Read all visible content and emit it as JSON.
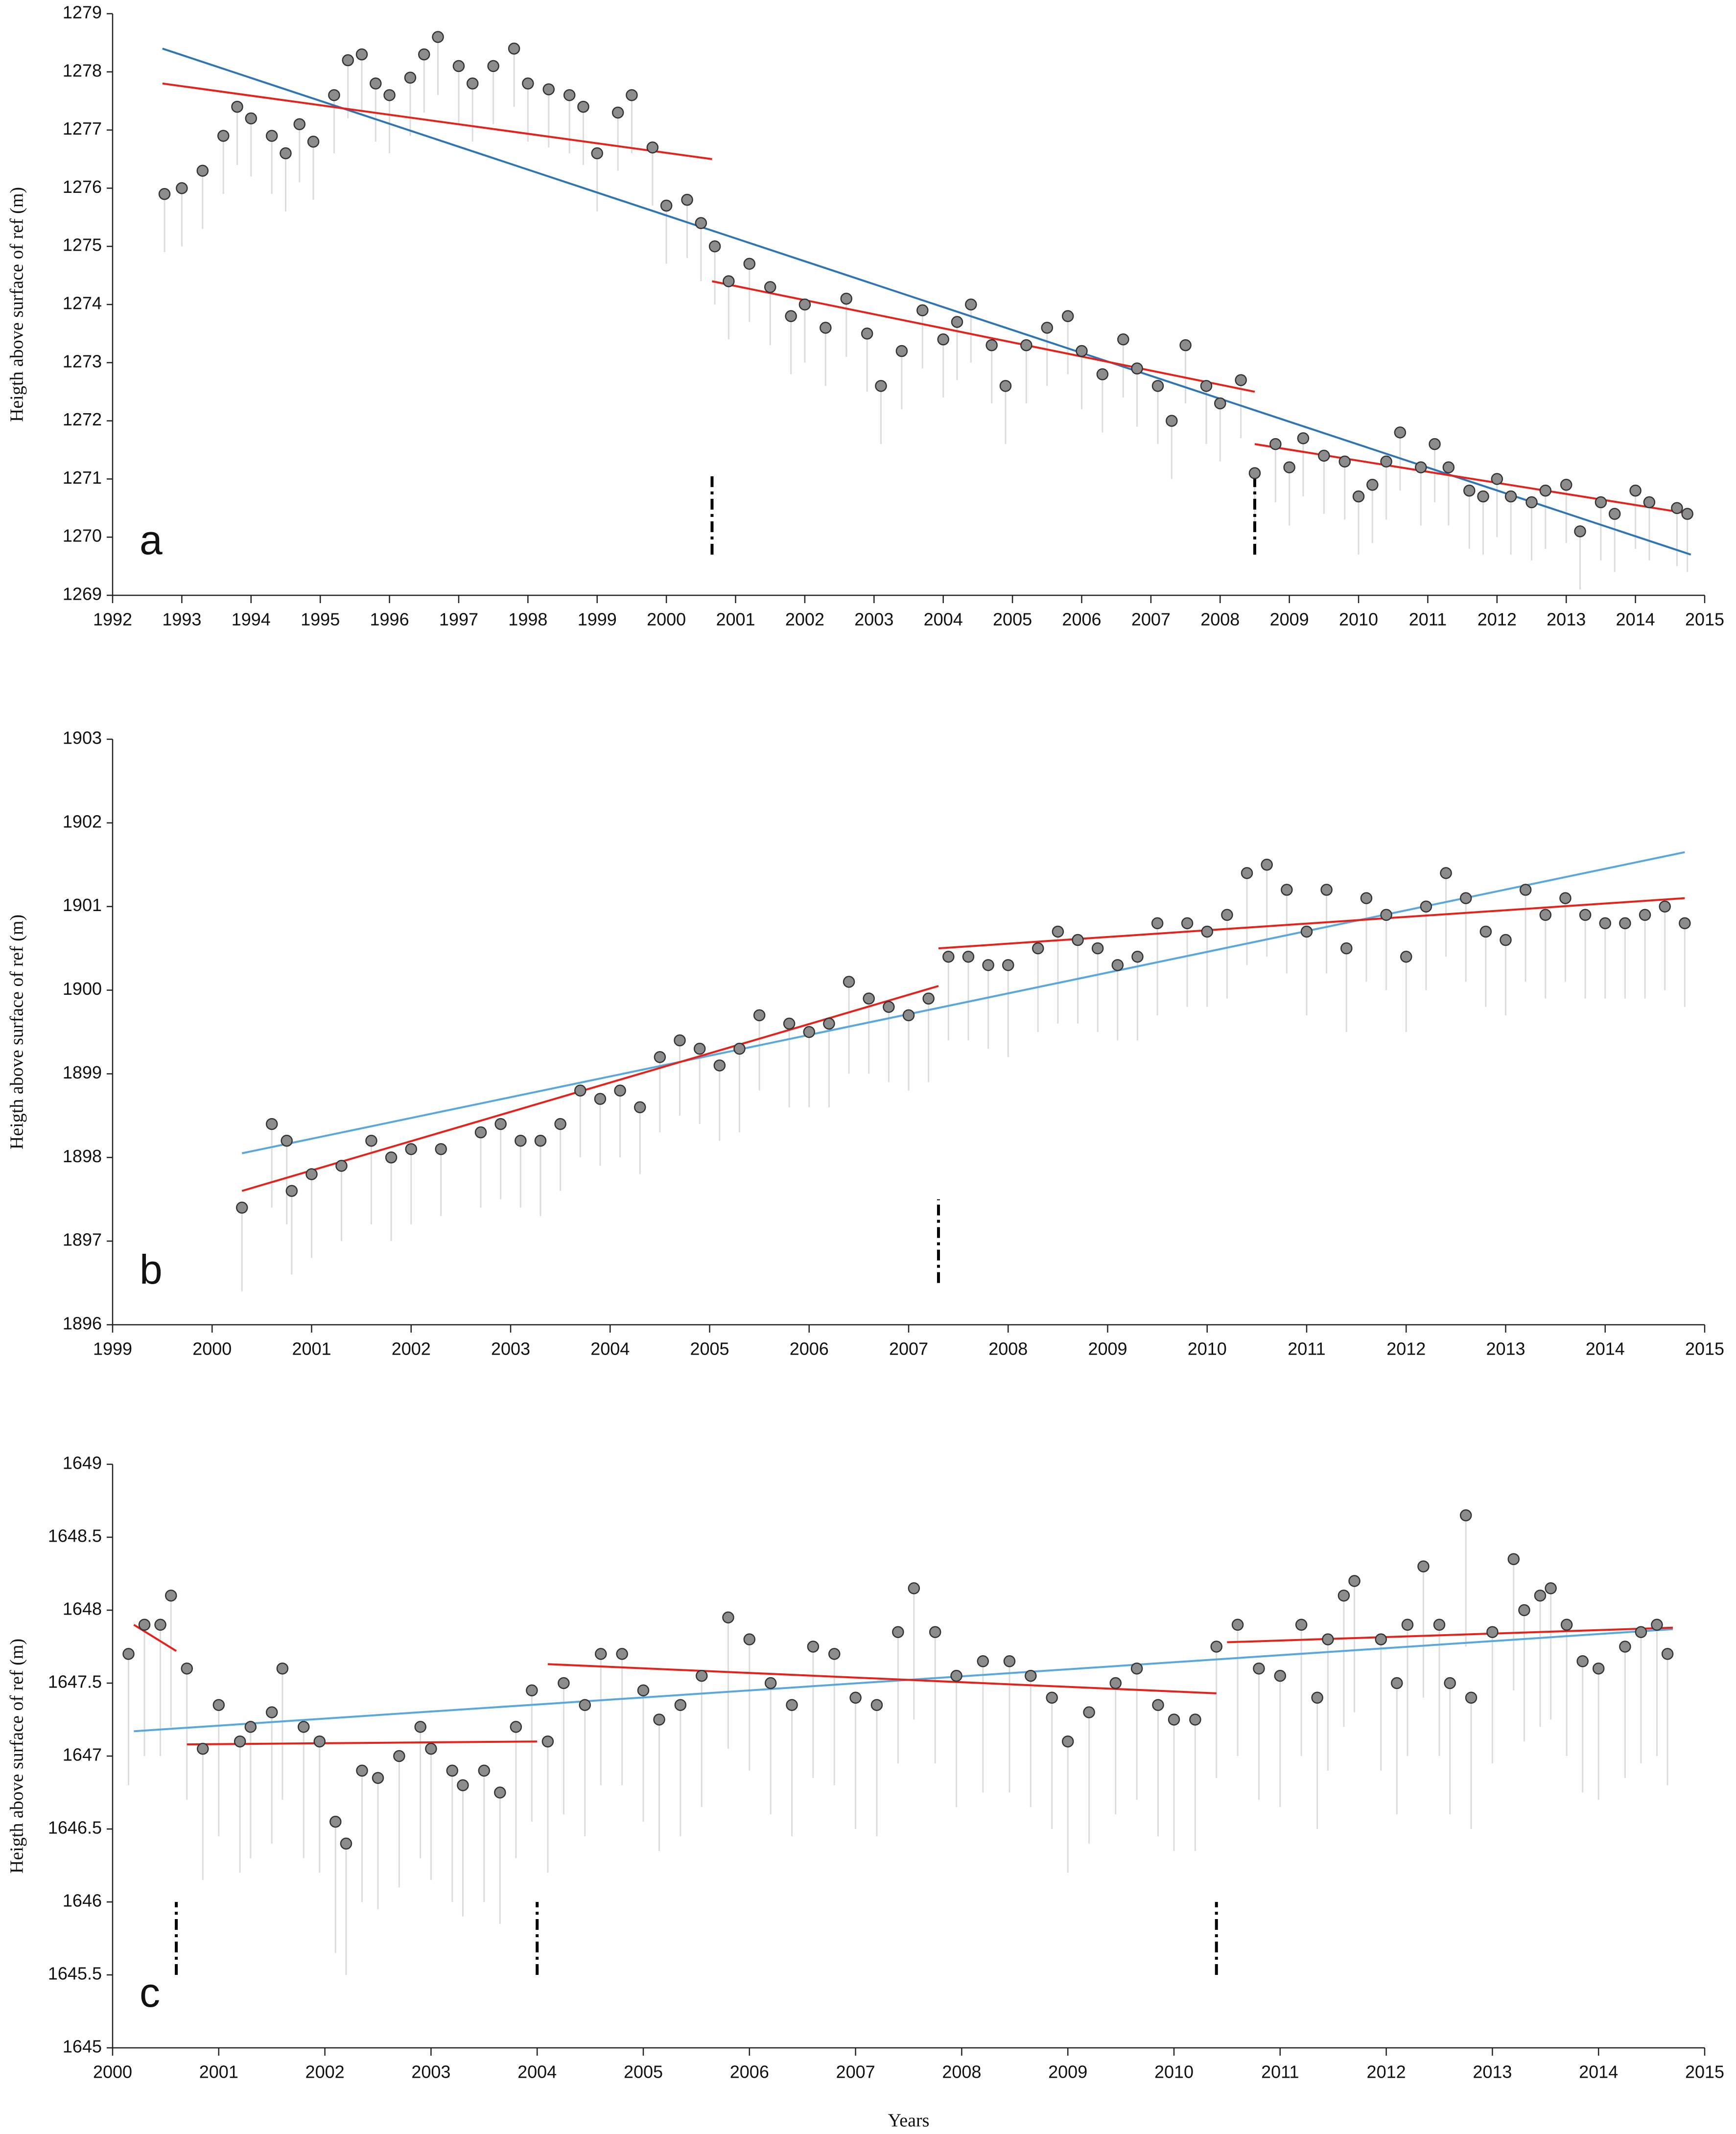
{
  "chart_data": [
    {
      "type": "scatter",
      "panel_label": "a",
      "ylabel": "Heigth above surface of ref  (m)",
      "xlim": [
        1992,
        2015
      ],
      "xticks": [
        1992,
        1993,
        1994,
        1995,
        1996,
        1997,
        1998,
        1999,
        2000,
        2001,
        2002,
        2003,
        2004,
        2005,
        2006,
        2007,
        2008,
        2009,
        2010,
        2011,
        2012,
        2013,
        2014,
        2015
      ],
      "ylim": [
        1269,
        1279
      ],
      "yticks": [
        1269,
        1270,
        1271,
        1272,
        1273,
        1274,
        1275,
        1276,
        1277,
        1278,
        1279
      ],
      "point_color": "#8c8c8c",
      "range_color": "#dcdcdc",
      "x": [
        1992.75,
        1993.0,
        1993.3,
        1993.6,
        1993.8,
        1994.0,
        1994.3,
        1994.5,
        1994.7,
        1994.9,
        1995.2,
        1995.4,
        1995.6,
        1995.8,
        1996.0,
        1996.3,
        1996.5,
        1996.7,
        1997.0,
        1997.2,
        1997.5,
        1997.8,
        1998.0,
        1998.3,
        1998.6,
        1998.8,
        1999.0,
        1999.3,
        1999.5,
        1999.8,
        2000.0,
        2000.3,
        2000.5,
        2000.7,
        2000.9,
        2001.2,
        2001.5,
        2001.8,
        2002.0,
        2002.3,
        2002.6,
        2002.9,
        2003.1,
        2003.4,
        2003.7,
        2004.0,
        2004.2,
        2004.4,
        2004.7,
        2004.9,
        2005.2,
        2005.5,
        2005.8,
        2006.0,
        2006.3,
        2006.6,
        2006.8,
        2007.1,
        2007.3,
        2007.5,
        2007.8,
        2008.0,
        2008.3,
        2008.5,
        2008.8,
        2009.0,
        2009.2,
        2009.5,
        2009.8,
        2010.0,
        2010.2,
        2010.4,
        2010.6,
        2010.9,
        2011.1,
        2011.3,
        2011.6,
        2011.8,
        2012.0,
        2012.2,
        2012.5,
        2012.7,
        2013.0,
        2013.2,
        2013.5,
        2013.7,
        2014.0,
        2014.2,
        2014.6,
        2014.75
      ],
      "values": [
        1275.9,
        1276.0,
        1276.3,
        1276.9,
        1277.4,
        1277.2,
        1276.9,
        1276.6,
        1277.1,
        1276.8,
        1277.6,
        1278.2,
        1278.3,
        1277.8,
        1277.6,
        1277.9,
        1278.3,
        1278.6,
        1278.1,
        1277.8,
        1278.1,
        1278.4,
        1277.8,
        1277.7,
        1277.6,
        1277.4,
        1276.6,
        1277.3,
        1277.6,
        1276.7,
        1275.7,
        1275.8,
        1275.4,
        1275.0,
        1274.4,
        1274.7,
        1274.3,
        1273.8,
        1274.0,
        1273.6,
        1274.1,
        1273.5,
        1272.6,
        1273.2,
        1273.9,
        1273.4,
        1273.7,
        1274.0,
        1273.3,
        1272.6,
        1273.3,
        1273.6,
        1273.8,
        1273.2,
        1272.8,
        1273.4,
        1272.9,
        1272.6,
        1272.0,
        1273.3,
        1272.6,
        1272.3,
        1272.7,
        1271.1,
        1271.6,
        1271.2,
        1271.7,
        1271.4,
        1271.3,
        1270.7,
        1270.9,
        1271.3,
        1271.8,
        1271.2,
        1271.6,
        1271.2,
        1270.8,
        1270.7,
        1271.0,
        1270.7,
        1270.6,
        1270.8,
        1270.9,
        1270.1,
        1270.6,
        1270.4,
        1270.8,
        1270.6,
        1270.5,
        1270.4
      ],
      "lows": [
        1274.9,
        1275.0,
        1275.3,
        1275.9,
        1276.4,
        1276.2,
        1275.9,
        1275.6,
        1276.1,
        1275.8,
        1276.6,
        1277.2,
        1277.3,
        1276.8,
        1276.6,
        1276.9,
        1277.3,
        1277.6,
        1277.1,
        1276.8,
        1277.1,
        1277.4,
        1276.8,
        1276.7,
        1276.6,
        1276.4,
        1275.6,
        1276.3,
        1276.6,
        1275.7,
        1274.7,
        1274.8,
        1274.4,
        1274.0,
        1273.4,
        1273.7,
        1273.3,
        1272.8,
        1273.0,
        1272.6,
        1273.1,
        1272.5,
        1271.6,
        1272.2,
        1272.9,
        1272.4,
        1272.7,
        1273.0,
        1272.3,
        1271.6,
        1272.3,
        1272.6,
        1272.8,
        1272.2,
        1271.8,
        1272.4,
        1271.9,
        1271.6,
        1271.0,
        1272.3,
        1271.6,
        1271.3,
        1271.7,
        1270.1,
        1270.6,
        1270.2,
        1270.7,
        1270.4,
        1270.3,
        1269.7,
        1269.9,
        1270.3,
        1270.8,
        1270.2,
        1270.6,
        1270.2,
        1269.8,
        1269.7,
        1270.0,
        1269.7,
        1269.6,
        1269.8,
        1269.9,
        1269.1,
        1269.6,
        1269.4,
        1269.8,
        1269.6,
        1269.5,
        1269.4
      ],
      "trend_lines": [
        {
          "color": "#2e75b6",
          "x": [
            1992.72,
            2014.8
          ],
          "y": [
            1278.4,
            1269.7
          ]
        },
        {
          "color": "#e8201a",
          "x": [
            1992.72,
            2000.66
          ],
          "y": [
            1277.8,
            1276.5
          ]
        },
        {
          "color": "#e8201a",
          "x": [
            2000.66,
            2008.5
          ],
          "y": [
            1274.4,
            1272.5
          ]
        },
        {
          "color": "#e8201a",
          "x": [
            2008.5,
            2014.8
          ],
          "y": [
            1271.6,
            1270.4
          ]
        }
      ],
      "breaks": [
        {
          "x": 2000.66,
          "y": [
            1269.7,
            1271.05
          ]
        },
        {
          "x": 2008.5,
          "y": [
            1269.7,
            1271.0
          ]
        }
      ]
    },
    {
      "type": "scatter",
      "panel_label": "b",
      "ylabel": "Heigth above surface of ref  (m)",
      "xlim": [
        1999,
        2015
      ],
      "xticks": [
        1999,
        2000,
        2001,
        2002,
        2003,
        2004,
        2005,
        2006,
        2007,
        2008,
        2009,
        2010,
        2011,
        2012,
        2013,
        2014,
        2015
      ],
      "ylim": [
        1896,
        1903
      ],
      "yticks": [
        1896,
        1897,
        1898,
        1899,
        1900,
        1901,
        1902,
        1903
      ],
      "point_color": "#8c8c8c",
      "range_color": "#dcdcdc",
      "x": [
        2000.3,
        2000.6,
        2000.75,
        2000.8,
        2001.0,
        2001.3,
        2001.6,
        2001.8,
        2002.0,
        2002.3,
        2002.7,
        2002.9,
        2003.1,
        2003.3,
        2003.5,
        2003.7,
        2003.9,
        2004.1,
        2004.3,
        2004.5,
        2004.7,
        2004.9,
        2005.1,
        2005.3,
        2005.5,
        2005.8,
        2006.0,
        2006.2,
        2006.4,
        2006.6,
        2006.8,
        2007.0,
        2007.2,
        2007.4,
        2007.6,
        2007.8,
        2008.0,
        2008.3,
        2008.5,
        2008.7,
        2008.9,
        2009.1,
        2009.3,
        2009.5,
        2009.8,
        2010.0,
        2010.2,
        2010.4,
        2010.6,
        2010.8,
        2011.0,
        2011.2,
        2011.4,
        2011.6,
        2011.8,
        2012.0,
        2012.2,
        2012.4,
        2012.6,
        2012.8,
        2013.0,
        2013.2,
        2013.4,
        2013.6,
        2013.8,
        2014.0,
        2014.2,
        2014.4,
        2014.6,
        2014.8
      ],
      "values": [
        1897.4,
        1898.4,
        1898.2,
        1897.6,
        1897.8,
        1897.9,
        1898.2,
        1898.0,
        1898.1,
        1898.1,
        1898.3,
        1898.4,
        1898.2,
        1898.2,
        1898.4,
        1898.8,
        1898.7,
        1898.8,
        1898.6,
        1899.2,
        1899.4,
        1899.3,
        1899.1,
        1899.3,
        1899.7,
        1899.6,
        1899.5,
        1899.6,
        1900.1,
        1899.9,
        1899.8,
        1899.7,
        1899.9,
        1900.4,
        1900.4,
        1900.3,
        1900.3,
        1900.5,
        1900.7,
        1900.6,
        1900.5,
        1900.3,
        1900.4,
        1900.8,
        1900.8,
        1900.7,
        1900.9,
        1901.4,
        1901.5,
        1901.2,
        1900.7,
        1901.2,
        1900.5,
        1901.1,
        1900.9,
        1900.4,
        1901.0,
        1901.4,
        1901.1,
        1900.7,
        1900.6,
        1901.2,
        1900.9,
        1901.1,
        1900.9,
        1900.8,
        1900.8,
        1900.9,
        1901.0,
        1900.8
      ],
      "lows": [
        1896.4,
        1897.4,
        1897.2,
        1896.6,
        1896.8,
        1897.0,
        1897.2,
        1897.0,
        1897.2,
        1897.3,
        1897.4,
        1897.5,
        1897.4,
        1897.3,
        1897.6,
        1898.0,
        1897.9,
        1898.0,
        1897.8,
        1898.3,
        1898.5,
        1898.4,
        1898.2,
        1898.3,
        1898.8,
        1898.6,
        1898.6,
        1898.6,
        1899.0,
        1899.0,
        1898.9,
        1898.8,
        1898.9,
        1899.4,
        1899.4,
        1899.3,
        1899.2,
        1899.5,
        1899.6,
        1899.6,
        1899.5,
        1899.4,
        1899.4,
        1899.7,
        1899.8,
        1899.8,
        1899.9,
        1900.3,
        1900.4,
        1900.2,
        1899.7,
        1900.2,
        1899.5,
        1900.1,
        1900.0,
        1899.5,
        1900.0,
        1900.4,
        1900.1,
        1899.8,
        1899.7,
        1900.1,
        1899.9,
        1900.1,
        1899.9,
        1899.9,
        1899.9,
        1899.9,
        1900.0,
        1899.8
      ],
      "trend_lines": [
        {
          "color": "#5aa7de",
          "x": [
            2000.3,
            2014.8
          ],
          "y": [
            1898.05,
            1901.65
          ]
        },
        {
          "color": "#e8201a",
          "x": [
            2000.3,
            2007.3
          ],
          "y": [
            1897.6,
            1900.05
          ]
        },
        {
          "color": "#e8201a",
          "x": [
            2007.3,
            2014.8
          ],
          "y": [
            1900.5,
            1901.1
          ]
        }
      ],
      "breaks": [
        {
          "x": 2007.3,
          "y": [
            1896.5,
            1897.5
          ]
        }
      ]
    },
    {
      "type": "scatter",
      "panel_label": "c",
      "ylabel": "Heigth above surface of ref  (m)",
      "xlabel": "Years",
      "xlim": [
        2000,
        2015
      ],
      "xticks": [
        2000,
        2001,
        2002,
        2003,
        2004,
        2005,
        2006,
        2007,
        2008,
        2009,
        2010,
        2011,
        2012,
        2013,
        2014,
        2015
      ],
      "ylim": [
        1645,
        1649
      ],
      "yticks": [
        1645,
        1645.5,
        1646,
        1646.5,
        1647,
        1647.5,
        1648,
        1648.5,
        1649
      ],
      "point_color": "#8c8c8c",
      "range_color": "#dcdcdc",
      "x": [
        2000.15,
        2000.3,
        2000.45,
        2000.55,
        2000.7,
        2000.85,
        2001.0,
        2001.2,
        2001.3,
        2001.5,
        2001.6,
        2001.8,
        2001.95,
        2002.1,
        2002.2,
        2002.35,
        2002.5,
        2002.7,
        2002.9,
        2003.0,
        2003.2,
        2003.3,
        2003.5,
        2003.65,
        2003.8,
        2003.95,
        2004.1,
        2004.25,
        2004.45,
        2004.6,
        2004.8,
        2005.0,
        2005.15,
        2005.35,
        2005.55,
        2005.8,
        2006.0,
        2006.2,
        2006.4,
        2006.6,
        2006.8,
        2007.0,
        2007.2,
        2007.4,
        2007.55,
        2007.75,
        2007.95,
        2008.2,
        2008.45,
        2008.65,
        2008.85,
        2009.0,
        2009.2,
        2009.45,
        2009.65,
        2009.85,
        2010.0,
        2010.2,
        2010.4,
        2010.6,
        2010.8,
        2011.0,
        2011.2,
        2011.35,
        2011.45,
        2011.6,
        2011.7,
        2011.95,
        2012.1,
        2012.2,
        2012.35,
        2012.5,
        2012.6,
        2012.75,
        2012.8,
        2013.0,
        2013.2,
        2013.3,
        2013.45,
        2013.55,
        2013.7,
        2013.85,
        2014.0,
        2014.25,
        2014.4,
        2014.55,
        2014.65
      ],
      "values": [
        1647.7,
        1647.9,
        1647.9,
        1648.1,
        1647.6,
        1647.05,
        1647.35,
        1647.1,
        1647.2,
        1647.3,
        1647.6,
        1647.2,
        1647.1,
        1646.55,
        1646.4,
        1646.9,
        1646.85,
        1647.0,
        1647.2,
        1647.05,
        1646.9,
        1646.8,
        1646.9,
        1646.75,
        1647.2,
        1647.45,
        1647.1,
        1647.5,
        1647.35,
        1647.7,
        1647.7,
        1647.45,
        1647.25,
        1647.35,
        1647.55,
        1647.95,
        1647.8,
        1647.5,
        1647.35,
        1647.75,
        1647.7,
        1647.4,
        1647.35,
        1647.85,
        1648.15,
        1647.85,
        1647.55,
        1647.65,
        1647.65,
        1647.55,
        1647.4,
        1647.1,
        1647.3,
        1647.5,
        1647.6,
        1647.35,
        1647.25,
        1647.25,
        1647.75,
        1647.9,
        1647.6,
        1647.55,
        1647.9,
        1647.4,
        1647.8,
        1648.1,
        1648.2,
        1647.8,
        1647.5,
        1647.9,
        1648.3,
        1647.9,
        1647.5,
        1648.65,
        1647.4,
        1647.85,
        1648.35,
        1648.0,
        1648.1,
        1648.15,
        1647.9,
        1647.65,
        1647.6,
        1647.75,
        1647.85,
        1647.9,
        1647.7
      ],
      "lows": [
        1646.8,
        1647.0,
        1647.0,
        1647.2,
        1646.7,
        1646.15,
        1646.45,
        1646.2,
        1646.3,
        1646.4,
        1646.7,
        1646.3,
        1646.2,
        1645.65,
        1645.5,
        1646.0,
        1645.95,
        1646.1,
        1646.3,
        1646.15,
        1646.0,
        1645.9,
        1646.0,
        1645.85,
        1646.3,
        1646.55,
        1646.2,
        1646.6,
        1646.45,
        1646.8,
        1646.8,
        1646.55,
        1646.35,
        1646.45,
        1646.65,
        1647.05,
        1646.9,
        1646.6,
        1646.45,
        1646.85,
        1646.8,
        1646.5,
        1646.45,
        1646.95,
        1647.25,
        1646.95,
        1646.65,
        1646.75,
        1646.75,
        1646.65,
        1646.5,
        1646.2,
        1646.4,
        1646.6,
        1646.7,
        1646.45,
        1646.35,
        1646.35,
        1646.85,
        1647.0,
        1646.7,
        1646.65,
        1647.0,
        1646.5,
        1646.9,
        1647.2,
        1647.3,
        1646.9,
        1646.6,
        1647.0,
        1647.4,
        1647.0,
        1646.6,
        1647.75,
        1646.5,
        1646.95,
        1647.45,
        1647.1,
        1647.2,
        1647.25,
        1647.0,
        1646.75,
        1646.7,
        1646.85,
        1646.95,
        1647.0,
        1646.8
      ],
      "trend_lines": [
        {
          "color": "#5aa7de",
          "x": [
            2000.2,
            2014.7
          ],
          "y": [
            1647.17,
            1647.87
          ]
        },
        {
          "color": "#e8201a",
          "x": [
            2000.2,
            2000.6
          ],
          "y": [
            1647.9,
            1647.72
          ]
        },
        {
          "color": "#e8201a",
          "x": [
            2000.7,
            2004.0
          ],
          "y": [
            1647.08,
            1647.1
          ]
        },
        {
          "color": "#e8201a",
          "x": [
            2004.1,
            2010.4
          ],
          "y": [
            1647.63,
            1647.43
          ]
        },
        {
          "color": "#e8201a",
          "x": [
            2010.5,
            2014.7
          ],
          "y": [
            1647.78,
            1647.88
          ]
        }
      ],
      "breaks": [
        {
          "x": 2000.6,
          "y": [
            1645.5,
            1646.0
          ]
        },
        {
          "x": 2004.0,
          "y": [
            1645.5,
            1646.0
          ]
        },
        {
          "x": 2010.4,
          "y": [
            1645.5,
            1646.0
          ]
        }
      ]
    }
  ]
}
